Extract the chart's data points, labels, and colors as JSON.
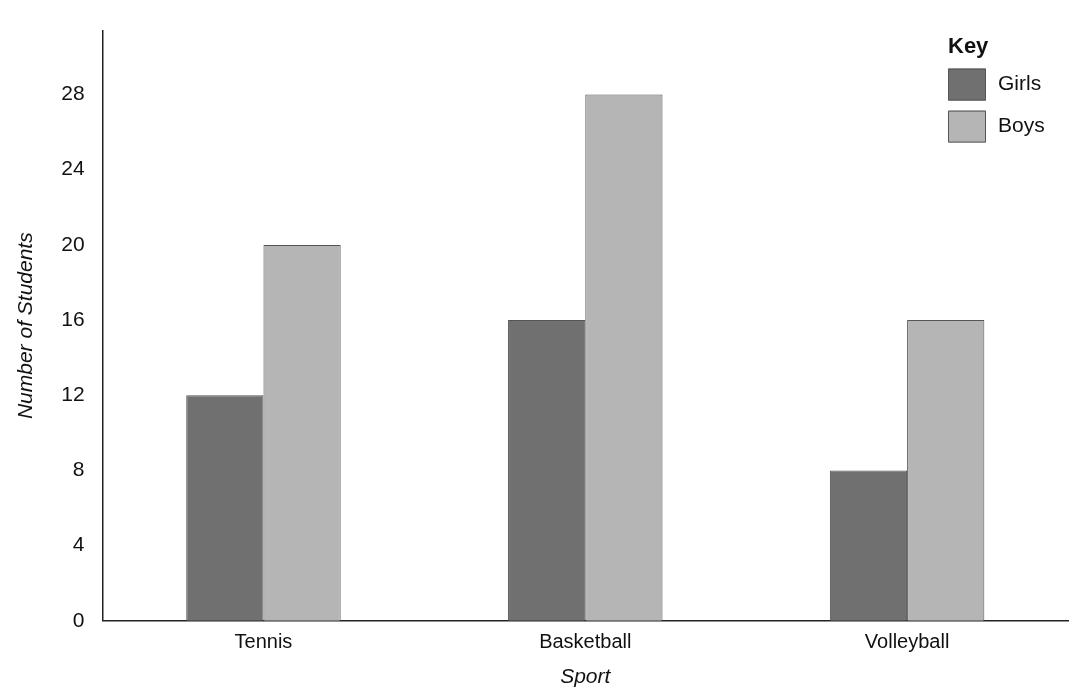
{
  "chart_data": {
    "type": "bar",
    "xlabel": "Sport",
    "ylabel": "Number of Students",
    "legend_title": "Key",
    "categories": [
      "Tennis",
      "Basketball",
      "Volleyball"
    ],
    "series": [
      {
        "name": "Girls",
        "color": "#707070",
        "values": [
          12,
          16,
          8
        ]
      },
      {
        "name": "Boys",
        "color": "#b5b5b5",
        "values": [
          20,
          28,
          16
        ]
      }
    ],
    "ylim": [
      0,
      31.4
    ],
    "yticks": [
      0,
      4,
      8,
      12,
      16,
      20,
      24,
      28
    ],
    "grid": false,
    "legend": "top right"
  }
}
